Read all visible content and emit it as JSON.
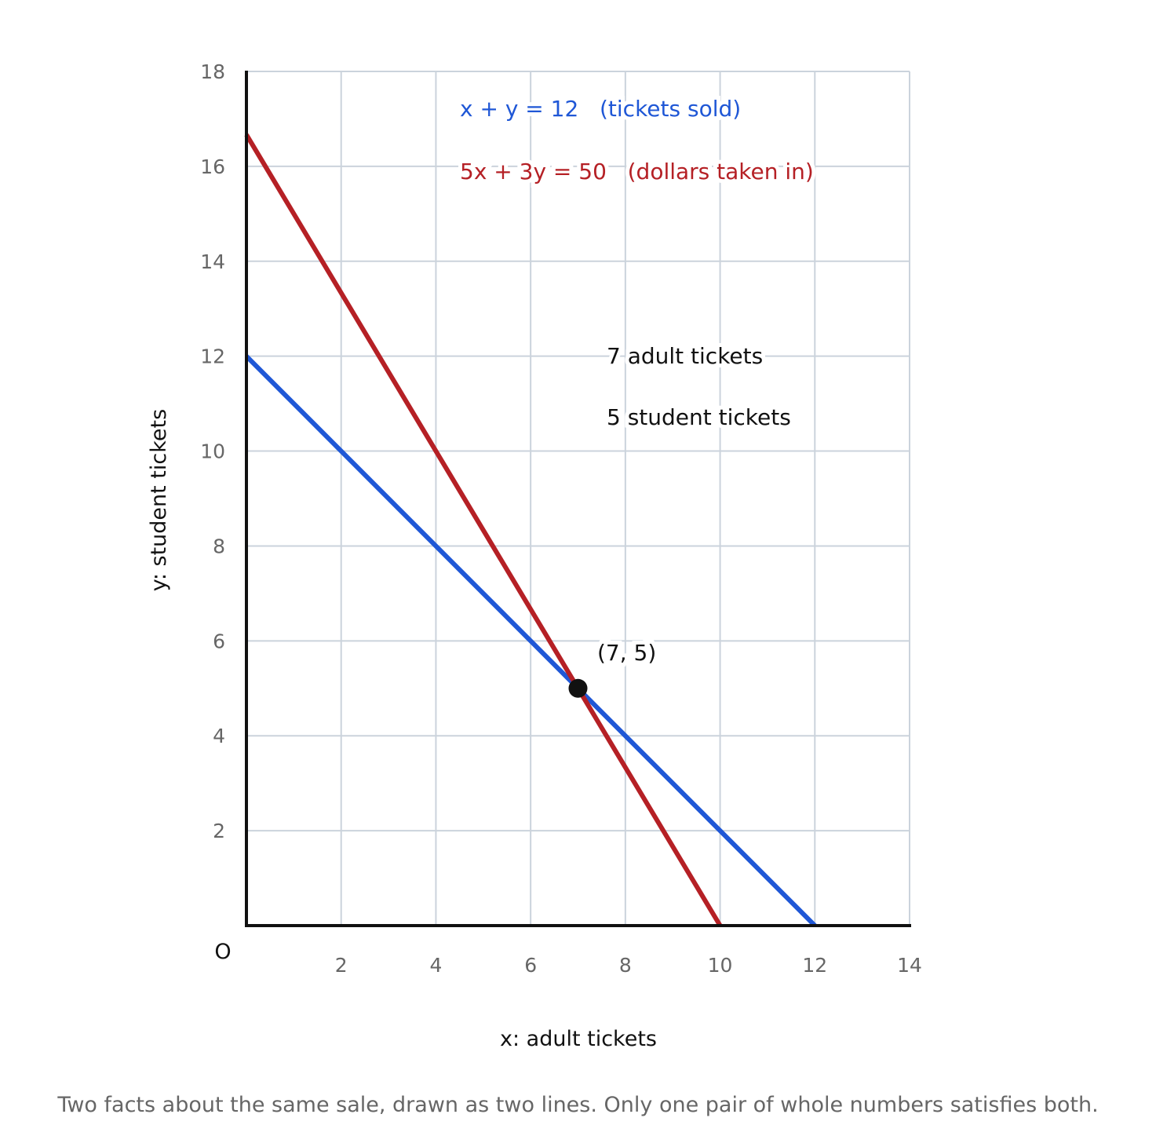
{
  "chart_data": {
    "type": "line",
    "xlabel": "x: adult tickets",
    "ylabel": "y: student tickets",
    "xlim": [
      0,
      14
    ],
    "ylim": [
      0,
      18
    ],
    "x_ticks": [
      2,
      4,
      6,
      8,
      10,
      12,
      14
    ],
    "y_ticks": [
      2,
      4,
      6,
      8,
      10,
      12,
      14,
      16,
      18
    ],
    "origin_label": "O",
    "grid": true,
    "series": [
      {
        "name": "x + y = 12   (tickets sold)",
        "color": "#1f57d6",
        "points": [
          [
            0,
            12
          ],
          [
            12,
            0
          ]
        ]
      },
      {
        "name": "5x + 3y = 50   (dollars taken in)",
        "color": "#b52025",
        "points": [
          [
            0,
            16.667
          ],
          [
            10,
            0
          ]
        ]
      }
    ],
    "intersection": {
      "x": 7,
      "y": 5,
      "label": "(7, 5)"
    },
    "annotations": [
      "7 adult tickets",
      "5 student tickets"
    ]
  },
  "caption": "Two facts about the same sale, drawn as two lines. Only one pair of whole numbers satisfies both."
}
